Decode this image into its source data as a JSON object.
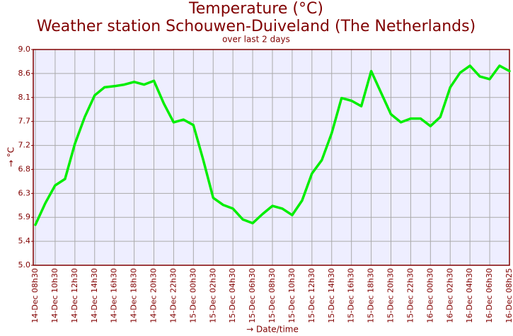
{
  "chart_data": {
    "type": "line",
    "title": "Temperature (°C)",
    "subtitle": "Weather station Schouwen-Duiveland (The Netherlands)",
    "note": "over last 2 days",
    "x_label": "→ Date/time",
    "y_label": "→ °C",
    "categories": [
      "14-Dec 08h30",
      null,
      "14-Dec 10h30",
      null,
      "14-Dec 12h30",
      null,
      "14-Dec 14h30",
      null,
      "14-Dec 16h30",
      null,
      "14-Dec 18h30",
      null,
      "14-Dec 20h30",
      null,
      "14-Dec 22h30",
      null,
      "15-Dec 00h30",
      null,
      "15-Dec 02h30",
      null,
      "15-Dec 04h30",
      null,
      "15-Dec 06h30",
      null,
      "15-Dec 08h30",
      null,
      "15-Dec 10h30",
      null,
      "15-Dec 12h30",
      null,
      "15-Dec 14h30",
      null,
      "15-Dec 16h30",
      null,
      "15-Dec 18h30",
      null,
      "15-Dec 20h30",
      null,
      "15-Dec 22h30",
      null,
      "16-Dec 00h30",
      null,
      "16-Dec 02h30",
      null,
      "16-Dec 04h30",
      null,
      "16-Dec 06h30",
      null,
      "16-Dec 08h25"
    ],
    "series": [
      {
        "name": "Temperature",
        "color": "#00ee00",
        "values": [
          5.75,
          6.15,
          6.48,
          6.6,
          7.25,
          7.75,
          8.15,
          8.3,
          8.32,
          8.35,
          8.4,
          8.35,
          8.42,
          8.0,
          7.65,
          7.7,
          7.6,
          6.95,
          6.25,
          6.12,
          6.05,
          5.85,
          5.78,
          5.95,
          6.1,
          6.05,
          5.93,
          6.2,
          6.7,
          6.95,
          7.45,
          8.1,
          8.05,
          7.95,
          8.6,
          8.2,
          7.8,
          7.65,
          7.72,
          7.72,
          7.58,
          7.75,
          8.3,
          8.57,
          8.7,
          8.5,
          8.45,
          8.7,
          8.6
        ]
      }
    ],
    "ylim": [
      5.0,
      9.0
    ],
    "yticks": [
      {
        "value": 5.0,
        "label": "5.0"
      },
      {
        "value": 5.444,
        "label": "5.4"
      },
      {
        "value": 5.889,
        "label": "5.9"
      },
      {
        "value": 6.333,
        "label": "6.3"
      },
      {
        "value": 6.778,
        "label": "6.8"
      },
      {
        "value": 7.222,
        "label": "7.2"
      },
      {
        "value": 7.667,
        "label": "7.7"
      },
      {
        "value": 8.111,
        "label": "8.1"
      },
      {
        "value": 8.556,
        "label": "8.6"
      },
      {
        "value": 9.0,
        "label": "9.0"
      }
    ],
    "grid": true
  }
}
